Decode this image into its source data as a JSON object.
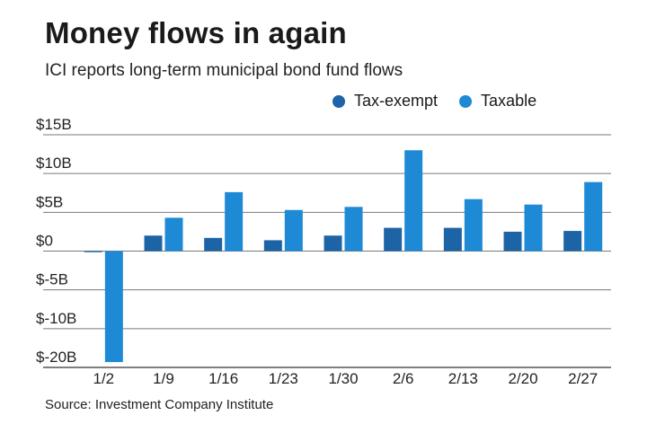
{
  "title": "Money flows in again",
  "subtitle": "ICI reports long-term municipal bond fund flows",
  "source": "Source: Investment Company Institute",
  "colors": {
    "tax_exempt": "#1c64a6",
    "taxable": "#1e8ad6",
    "grid": "#7a7a7a"
  },
  "chart_data": {
    "type": "bar",
    "categories": [
      "1/2",
      "1/9",
      "1/16",
      "1/23",
      "1/30",
      "2/6",
      "2/13",
      "2/20",
      "2/27"
    ],
    "series": [
      {
        "name": "Tax-exempt",
        "values": [
          -0.1,
          2.0,
          1.7,
          1.4,
          2.0,
          3.0,
          3.0,
          2.5,
          2.6
        ]
      },
      {
        "name": "Taxable",
        "values": [
          -19.0,
          4.3,
          7.6,
          5.3,
          5.7,
          13.0,
          6.7,
          6.0,
          8.9
        ]
      }
    ],
    "y_ticks": [
      "$15B",
      "$10B",
      "$5B",
      "$0",
      "$-5B",
      "$-10B",
      "$-20B"
    ],
    "ylim": [
      -20,
      15
    ],
    "legend_position": "top-right",
    "grid": true
  }
}
